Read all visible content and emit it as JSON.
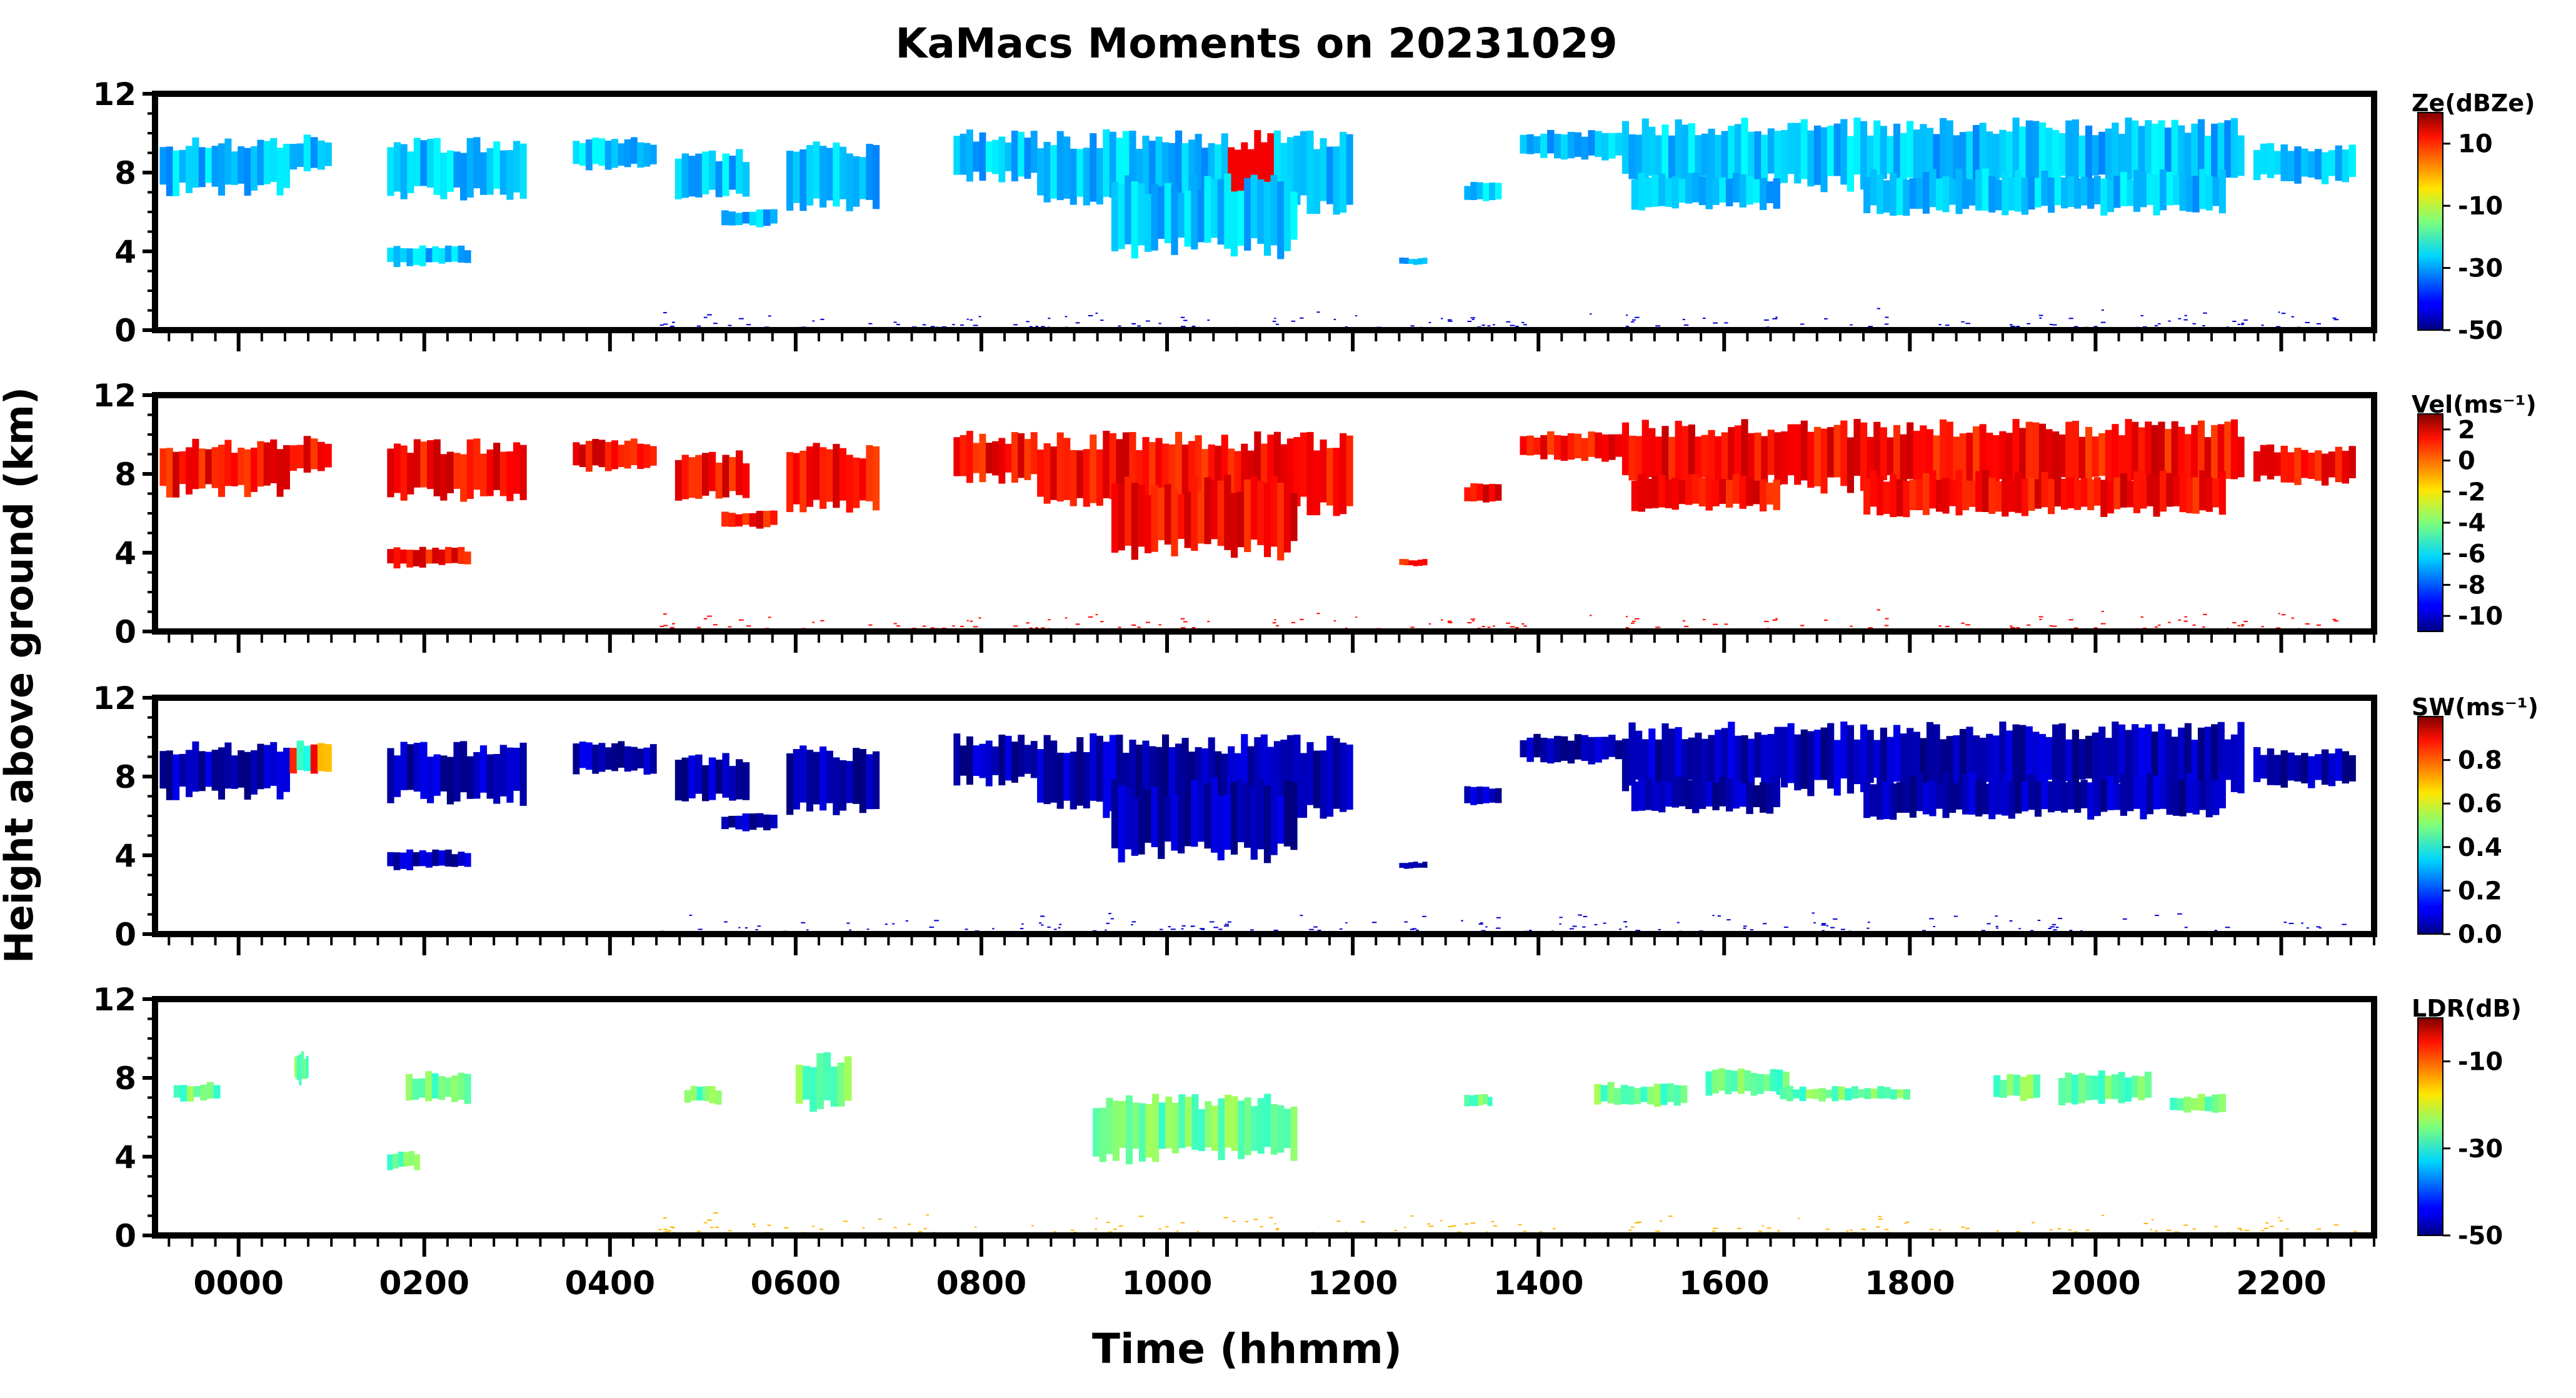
{
  "chart_data": {
    "type": "heatmap",
    "title": "KaMacs Moments on 20231029",
    "xlabel": "Time (hhmm)",
    "ylabel": "Height above ground (km)",
    "x_tick_labels": [
      "0000",
      "0200",
      "0400",
      "0600",
      "0800",
      "1000",
      "1200",
      "1400",
      "1600",
      "1800",
      "2000",
      "2200"
    ],
    "x_tick_hours": [
      0,
      2,
      4,
      6,
      8,
      10,
      12,
      14,
      16,
      18,
      20,
      22
    ],
    "xlim_hours": [
      -0.9,
      23.0
    ],
    "y_tick_labels": [
      "0",
      "4",
      "8",
      "12"
    ],
    "ylim_km": [
      0,
      12
    ],
    "grid": false,
    "colormap": "jet",
    "panels": [
      {
        "label": "Z$_e$(dBZ$_e$)",
        "display_label": "Ze(dBZe)",
        "clim": [
          -50,
          20
        ],
        "colorbar_ticks": [
          "10",
          "-10",
          "-30",
          "-50"
        ],
        "colorbar_values": [
          10,
          -10,
          -30,
          -50
        ],
        "typical_value": -28,
        "hot_value": 12
      },
      {
        "label": "Vel(ms$^{-1}$)",
        "display_label": "Vel(ms⁻¹)",
        "clim": [
          -11,
          3
        ],
        "colorbar_ticks": [
          "2",
          "0",
          "-2",
          "-4",
          "-6",
          "-8",
          "-10"
        ],
        "colorbar_values": [
          2,
          0,
          -2,
          -4,
          -6,
          -8,
          -10
        ],
        "typical_value": 1.2,
        "hot_value": 1.2
      },
      {
        "label": "SW(ms$^{-1}$)",
        "display_label": "SW(ms⁻¹)",
        "clim": [
          0,
          1.0
        ],
        "colorbar_ticks": [
          "0.8",
          "0.6",
          "0.4",
          "0.2",
          "0.0"
        ],
        "colorbar_values": [
          0.8,
          0.6,
          0.4,
          0.2,
          0.0
        ],
        "typical_value": 0.05,
        "hot_value": 0.9
      },
      {
        "label": "LDR(dB)",
        "display_label": "LDR(dB)",
        "clim": [
          -50,
          0
        ],
        "colorbar_ticks": [
          "-10",
          "-30",
          "-50"
        ],
        "colorbar_values": [
          -10,
          -30,
          -50
        ],
        "typical_value": -26,
        "hot_value": -26
      }
    ],
    "cloud_regions_hours_km": [
      {
        "t0": -0.85,
        "t1": 0.55,
        "z0": 6.8,
        "z1": 9.8
      },
      {
        "t0": 0.55,
        "t1": 1.0,
        "z0": 7.8,
        "z1": 10.0
      },
      {
        "t0": 1.6,
        "t1": 3.1,
        "z0": 6.5,
        "z1": 9.8
      },
      {
        "t0": 1.6,
        "t1": 2.5,
        "z0": 3.2,
        "z1": 4.3
      },
      {
        "t0": 3.6,
        "t1": 4.5,
        "z0": 8.0,
        "z1": 9.8
      },
      {
        "t0": 4.7,
        "t1": 5.5,
        "z0": 6.5,
        "z1": 9.2
      },
      {
        "t0": 5.2,
        "t1": 5.8,
        "z0": 5.2,
        "z1": 6.2
      },
      {
        "t0": 5.9,
        "t1": 6.9,
        "z0": 5.8,
        "z1": 9.6
      },
      {
        "t0": 7.7,
        "t1": 8.6,
        "z0": 7.5,
        "z1": 10.2
      },
      {
        "t0": 8.6,
        "t1": 12.0,
        "z0": 5.8,
        "z1": 10.2
      },
      {
        "t0": 9.4,
        "t1": 11.4,
        "z0": 3.6,
        "z1": 8.0
      },
      {
        "t0": 12.5,
        "t1": 12.8,
        "z0": 3.3,
        "z1": 3.7
      },
      {
        "t0": 13.2,
        "t1": 13.6,
        "z0": 6.4,
        "z1": 7.6
      },
      {
        "t0": 13.8,
        "t1": 14.9,
        "z0": 8.6,
        "z1": 10.2
      },
      {
        "t0": 14.9,
        "t1": 21.6,
        "z0": 7.0,
        "z1": 10.8
      },
      {
        "t0": 15.0,
        "t1": 16.6,
        "z0": 6.0,
        "z1": 8.0
      },
      {
        "t0": 17.5,
        "t1": 21.4,
        "z0": 5.8,
        "z1": 8.2
      },
      {
        "t0": 21.7,
        "t1": 22.8,
        "z0": 7.4,
        "z1": 9.5
      }
    ],
    "ldr_regions_hours_km": [
      {
        "t0": -0.7,
        "t1": -0.2,
        "z0": 6.8,
        "z1": 7.8
      },
      {
        "t0": 0.6,
        "t1": 0.75,
        "z0": 7.6,
        "z1": 9.4
      },
      {
        "t0": 1.6,
        "t1": 1.95,
        "z0": 3.3,
        "z1": 4.3
      },
      {
        "t0": 1.8,
        "t1": 2.5,
        "z0": 6.6,
        "z1": 8.4
      },
      {
        "t0": 4.8,
        "t1": 5.2,
        "z0": 6.6,
        "z1": 7.6
      },
      {
        "t0": 6.0,
        "t1": 6.6,
        "z0": 6.2,
        "z1": 9.3
      },
      {
        "t0": 9.2,
        "t1": 11.4,
        "z0": 3.6,
        "z1": 7.2
      },
      {
        "t0": 13.2,
        "t1": 13.5,
        "z0": 6.5,
        "z1": 7.2
      },
      {
        "t0": 14.6,
        "t1": 15.6,
        "z0": 6.5,
        "z1": 7.8
      },
      {
        "t0": 15.8,
        "t1": 16.7,
        "z0": 7.0,
        "z1": 8.5
      },
      {
        "t0": 16.6,
        "t1": 18.0,
        "z0": 6.8,
        "z1": 7.6
      },
      {
        "t0": 18.9,
        "t1": 19.4,
        "z0": 6.8,
        "z1": 8.2
      },
      {
        "t0": 19.6,
        "t1": 20.6,
        "z0": 6.6,
        "z1": 8.4
      },
      {
        "t0": 20.8,
        "t1": 21.4,
        "z0": 6.2,
        "z1": 7.2
      }
    ],
    "surface_clutter_hours_km": {
      "t0": 4.5,
      "t1": 22.8,
      "z0": 0.0,
      "z1": 1.2
    }
  }
}
